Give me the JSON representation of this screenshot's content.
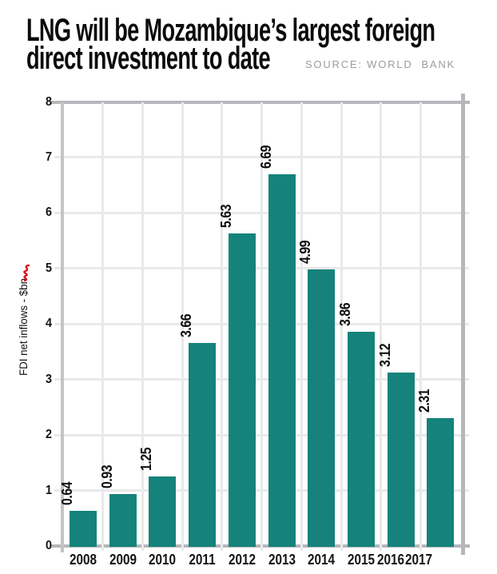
{
  "header": {
    "title_line1": "LNG will be Mozambique’s largest foreign",
    "title_line2": "direct investment to date",
    "source": "SOURCE: WORLD  BANK"
  },
  "chart_data": {
    "type": "bar",
    "title": "LNG will be Mozambique’s largest foreign direct investment to date",
    "source": "SOURCE: WORLD BANK",
    "categories": [
      "2008",
      "2009",
      "2010",
      "2011",
      "2012",
      "2013",
      "2014",
      "2015",
      "2016",
      "2017"
    ],
    "values": [
      0.64,
      0.93,
      1.25,
      3.66,
      5.63,
      6.69,
      4.99,
      3.86,
      3.12,
      2.31
    ],
    "value_label_decimals": 2,
    "value_labels_rotated": true,
    "xlabel": "",
    "ylabel": "FDI net inflows - $bn",
    "ylim": [
      0,
      8
    ],
    "yticks": [
      0,
      1,
      2,
      3,
      4,
      5,
      6,
      7,
      8
    ],
    "grid": "horizontal and vertical gridlines, boxed right border",
    "legend": "none"
  },
  "colors": {
    "bar": "#15837B",
    "accent_red": "#E0141C",
    "source_gray": "#9C9C9C",
    "grid_light": "#E8E9EB",
    "grid_dark": "#B5B7BB",
    "axis_gray": "#C2C4C8",
    "text": "#111111"
  }
}
